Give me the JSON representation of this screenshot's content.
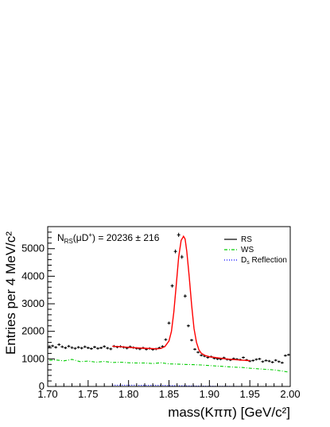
{
  "chart_data": {
    "type": "scatter",
    "title": "",
    "xlabel": "mass(Kππ) [GeV/c²]",
    "ylabel": "Entries per 4 MeV/c²",
    "xlim": [
      1.7,
      2.0
    ],
    "ylim": [
      0,
      5800
    ],
    "x_ticks": [
      "1.70",
      "1.75",
      "1.80",
      "1.85",
      "1.90",
      "1.95",
      "2.00"
    ],
    "y_ticks": [
      "0",
      "1000",
      "2000",
      "3000",
      "4000",
      "5000"
    ],
    "annotation": "N_RS(μD⁺) = 20236 ± 216",
    "annotation_parts": {
      "n": "N",
      "sub": "RS",
      "paren_open": "(μD",
      "sup": "+",
      "rest": ") = 20236 ± 216"
    },
    "legend": {
      "placement": "top-right",
      "entries": [
        {
          "label": "RS",
          "color": "#000000",
          "style": "solid"
        },
        {
          "label": "WS",
          "color": "#00cc00",
          "style": "dash-dot"
        },
        {
          "label": "D_s Reflection",
          "label_main": "D",
          "label_sub": "s",
          "label_rest": " Reflection",
          "color": "#0000ff",
          "style": "dotted"
        }
      ]
    },
    "series": [
      {
        "name": "RS",
        "kind": "points-with-errors",
        "color": "#000000",
        "x": [
          1.702,
          1.706,
          1.71,
          1.714,
          1.718,
          1.722,
          1.726,
          1.73,
          1.734,
          1.738,
          1.742,
          1.746,
          1.75,
          1.754,
          1.758,
          1.762,
          1.766,
          1.77,
          1.774,
          1.778,
          1.782,
          1.786,
          1.79,
          1.794,
          1.798,
          1.802,
          1.806,
          1.81,
          1.814,
          1.818,
          1.822,
          1.826,
          1.83,
          1.834,
          1.838,
          1.842,
          1.846,
          1.85,
          1.854,
          1.858,
          1.862,
          1.866,
          1.87,
          1.874,
          1.878,
          1.882,
          1.886,
          1.89,
          1.894,
          1.898,
          1.902,
          1.906,
          1.91,
          1.914,
          1.918,
          1.922,
          1.926,
          1.93,
          1.934,
          1.938,
          1.942,
          1.946,
          1.95,
          1.954,
          1.958,
          1.962,
          1.966,
          1.97,
          1.974,
          1.978,
          1.982,
          1.986,
          1.99,
          1.994,
          1.998
        ],
        "y": [
          1450,
          1470,
          1420,
          1520,
          1440,
          1400,
          1460,
          1410,
          1380,
          1420,
          1390,
          1440,
          1400,
          1370,
          1430,
          1380,
          1400,
          1450,
          1390,
          1360,
          1460,
          1430,
          1450,
          1420,
          1390,
          1440,
          1410,
          1380,
          1360,
          1400,
          1350,
          1380,
          1340,
          1360,
          1400,
          1450,
          1700,
          2300,
          3650,
          4900,
          5500,
          4700,
          3280,
          2200,
          1680,
          1350,
          1240,
          1130,
          1100,
          1050,
          1080,
          1020,
          1000,
          990,
          1040,
          980,
          960,
          1010,
          990,
          970,
          1050,
          960,
          920,
          940,
          980,
          1000,
          900,
          940,
          920,
          880,
          950,
          900,
          860,
          1120,
          1150
        ],
        "err": [
          45,
          45,
          45,
          45,
          45,
          45,
          45,
          45,
          45,
          45,
          45,
          45,
          45,
          45,
          45,
          45,
          45,
          45,
          45,
          45,
          45,
          45,
          45,
          45,
          45,
          45,
          45,
          45,
          45,
          45,
          45,
          45,
          45,
          45,
          45,
          45,
          45,
          50,
          60,
          70,
          75,
          70,
          60,
          50,
          45,
          40,
          40,
          40,
          40,
          40,
          40,
          40,
          40,
          40,
          40,
          40,
          40,
          40,
          40,
          40,
          40,
          40,
          40,
          40,
          40,
          40,
          40,
          40,
          40,
          40,
          40,
          40,
          40,
          40,
          40
        ]
      },
      {
        "name": "RS fit",
        "kind": "curve",
        "color": "#ff0000",
        "x": [
          1.78,
          1.79,
          1.8,
          1.81,
          1.82,
          1.83,
          1.835,
          1.84,
          1.845,
          1.85,
          1.853,
          1.856,
          1.859,
          1.862,
          1.865,
          1.868,
          1.87,
          1.872,
          1.875,
          1.878,
          1.881,
          1.884,
          1.887,
          1.89,
          1.895,
          1.9,
          1.91,
          1.92,
          1.93,
          1.94,
          1.95
        ],
        "y": [
          1460,
          1440,
          1420,
          1400,
          1385,
          1370,
          1365,
          1380,
          1450,
          1650,
          2000,
          2700,
          3700,
          4700,
          5300,
          5450,
          5350,
          4900,
          4000,
          2950,
          2100,
          1600,
          1330,
          1200,
          1120,
          1080,
          1040,
          1000,
          975,
          955,
          935
        ]
      },
      {
        "name": "WS",
        "kind": "dash-dot",
        "color": "#00cc00",
        "x": [
          1.702,
          1.71,
          1.72,
          1.73,
          1.74,
          1.75,
          1.76,
          1.77,
          1.78,
          1.79,
          1.8,
          1.81,
          1.82,
          1.83,
          1.84,
          1.85,
          1.86,
          1.87,
          1.88,
          1.89,
          1.9,
          1.91,
          1.92,
          1.93,
          1.94,
          1.95,
          1.96,
          1.97,
          1.98,
          1.99,
          1.998
        ],
        "y": [
          950,
          960,
          930,
          980,
          900,
          920,
          880,
          910,
          870,
          880,
          860,
          850,
          850,
          830,
          860,
          820,
          810,
          800,
          790,
          780,
          760,
          740,
          720,
          700,
          690,
          660,
          640,
          620,
          600,
          560,
          520
        ]
      },
      {
        "name": "D_s Reflection",
        "kind": "dotted",
        "color": "#0000ff",
        "x": [
          1.78,
          1.8,
          1.82,
          1.84,
          1.86,
          1.88,
          1.9,
          1.92,
          1.94,
          1.95
        ],
        "y": [
          45,
          45,
          40,
          40,
          30,
          20,
          10,
          5,
          0,
          0
        ]
      }
    ]
  }
}
